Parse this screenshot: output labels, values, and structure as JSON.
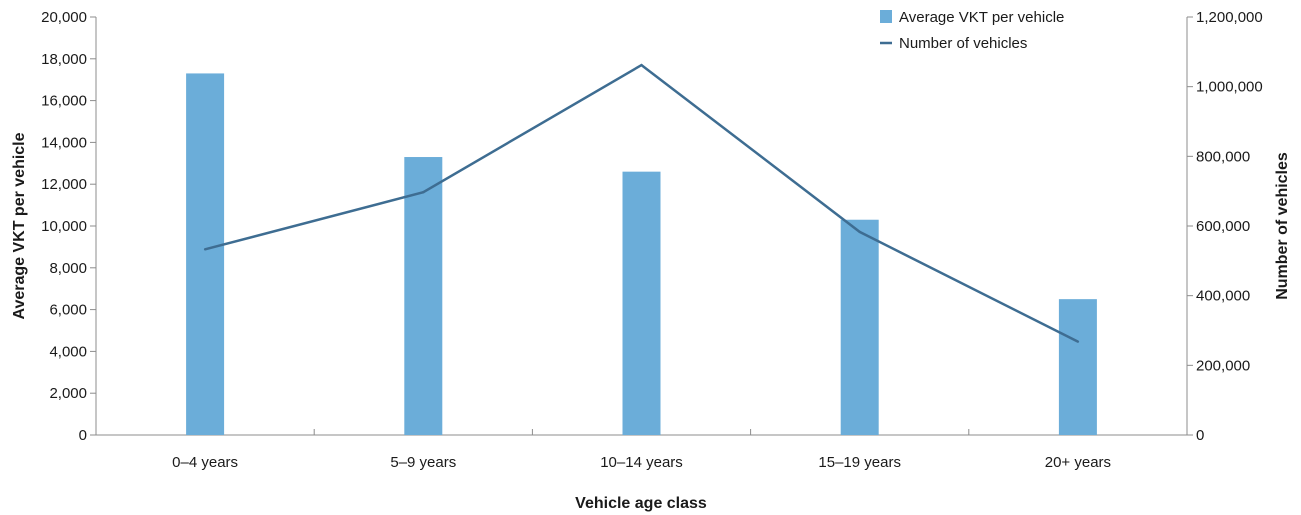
{
  "chart_data": {
    "type": "bar",
    "categories": [
      "0–4 years",
      "5–9 years",
      "10–14 years",
      "15–19 years",
      "20+ years"
    ],
    "xlabel": "Vehicle age class",
    "ylabel": "Average VKT per vehicle",
    "y2label": "Number of vehicles",
    "ylim": [
      0,
      20000
    ],
    "y2lim": [
      0,
      1200000
    ],
    "yticks": [
      "0",
      "2,000",
      "4,000",
      "6,000",
      "8,000",
      "10,000",
      "12,000",
      "14,000",
      "16,000",
      "18,000",
      "20,000"
    ],
    "y2ticks": [
      "0",
      "200,000",
      "400,000",
      "600,000",
      "800,000",
      "1,000,000",
      "1,200,000"
    ],
    "grid": false,
    "legend_position": "top-right",
    "series": [
      {
        "name": "Average VKT per vehicle",
        "type": "bar",
        "axis": "left",
        "color": "#6badd9",
        "values": [
          17300,
          13300,
          12600,
          10300,
          6500
        ]
      },
      {
        "name": "Number of vehicles",
        "type": "line",
        "axis": "right",
        "color": "#3e6d92",
        "values": [
          533000,
          697000,
          1062000,
          583000,
          268000
        ]
      }
    ]
  }
}
